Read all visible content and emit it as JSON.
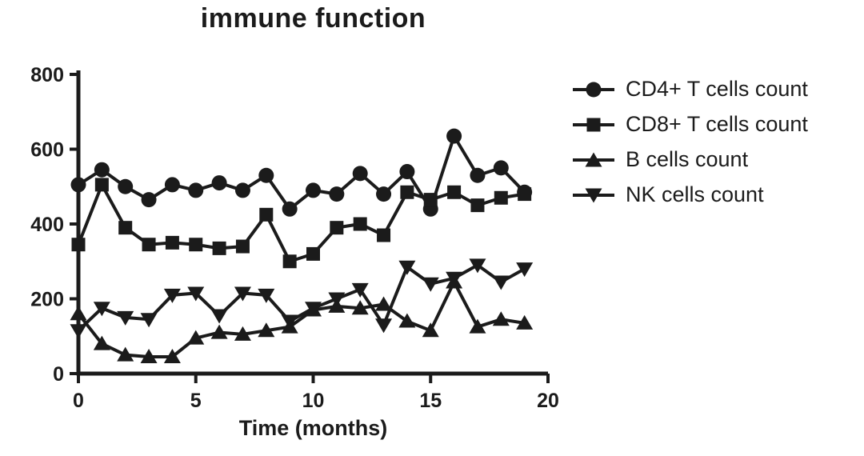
{
  "title": "immune function",
  "colors": {
    "series": "#1b1b1b",
    "background": "#ffffff"
  },
  "chart_data": {
    "type": "line",
    "title": "immune function",
    "xlabel": "Time (months)",
    "ylabel": "",
    "xlim": [
      0,
      20
    ],
    "ylim": [
      0,
      800
    ],
    "x_ticks": [
      0,
      5,
      10,
      15,
      20
    ],
    "y_ticks": [
      0,
      200,
      400,
      600,
      800
    ],
    "grid": false,
    "legend_position": "right",
    "x": [
      0,
      1,
      2,
      3,
      4,
      5,
      6,
      7,
      8,
      9,
      10,
      11,
      12,
      13,
      14,
      15,
      16,
      17,
      18,
      19
    ],
    "series": [
      {
        "name": "CD4+ T cells count",
        "marker": "circle",
        "values": [
          505,
          545,
          500,
          465,
          505,
          490,
          510,
          490,
          530,
          440,
          490,
          480,
          535,
          480,
          540,
          440,
          635,
          530,
          550,
          485
        ]
      },
      {
        "name": "CD8+ T cells count",
        "marker": "square",
        "values": [
          345,
          505,
          390,
          345,
          350,
          345,
          335,
          340,
          425,
          300,
          320,
          390,
          400,
          370,
          485,
          465,
          485,
          450,
          470,
          480
        ]
      },
      {
        "name": "B cells count",
        "marker": "triangle-up",
        "values": [
          160,
          80,
          50,
          45,
          45,
          95,
          110,
          105,
          115,
          125,
          170,
          180,
          175,
          185,
          140,
          115,
          245,
          125,
          145,
          135
        ]
      },
      {
        "name": "NK cells count",
        "marker": "triangle-down",
        "values": [
          115,
          175,
          150,
          145,
          210,
          215,
          155,
          215,
          210,
          140,
          175,
          200,
          225,
          130,
          285,
          240,
          255,
          290,
          245,
          280
        ]
      }
    ]
  }
}
